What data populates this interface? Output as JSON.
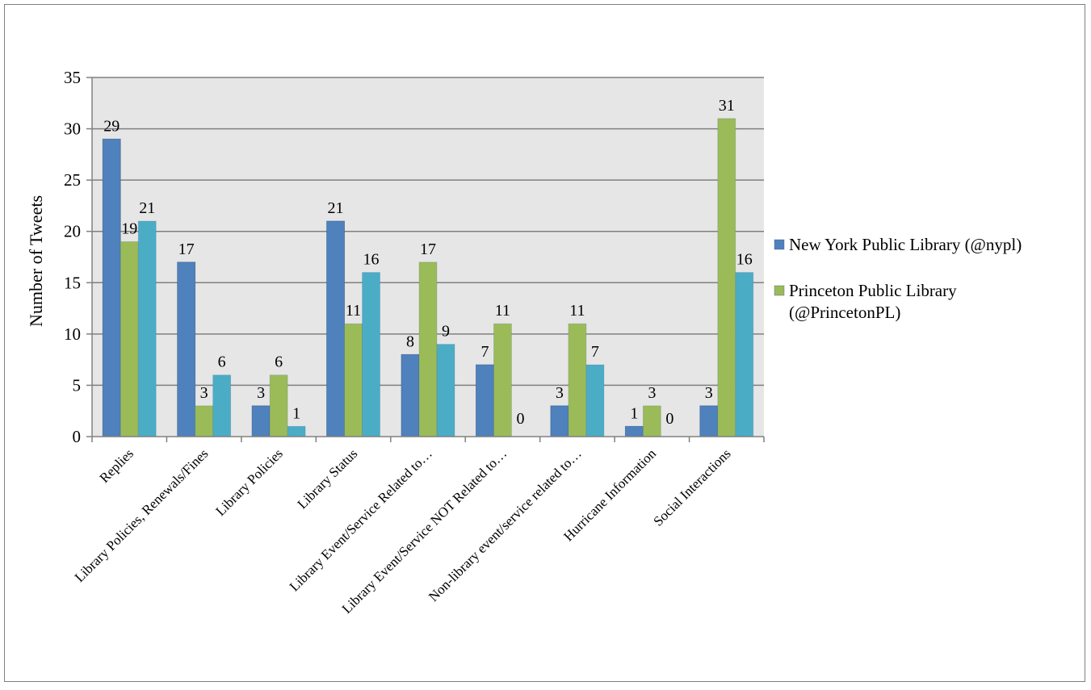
{
  "chart_data": {
    "type": "bar",
    "ylabel": "Number of Tweets",
    "xlabel": "",
    "title": "",
    "ylim": [
      0,
      35
    ],
    "yticks": [
      "0",
      "5",
      "10",
      "15",
      "20",
      "25",
      "30",
      "35"
    ],
    "categories": [
      "Replies",
      "Library Policies, Renewals/Fines",
      "Library Policies",
      "Library Status",
      "Library Event/Service Related to…",
      "Library Event/Service NOT Related to…",
      "Non-library event/service related to…",
      "Hurricane Information",
      "Social Interactions"
    ],
    "series": [
      {
        "name": "New York Public Library (@nypl)",
        "color": "#4f81bd",
        "values": [
          29,
          17,
          3,
          21,
          8,
          7,
          3,
          1,
          3
        ]
      },
      {
        "name": "Princeton Public Library (@PrincetonPL)",
        "color": "#9bbb59",
        "values": [
          19,
          3,
          6,
          11,
          17,
          11,
          11,
          3,
          31
        ]
      },
      {
        "name": "",
        "color": "#4bacc6",
        "values": [
          21,
          6,
          1,
          16,
          9,
          0,
          7,
          0,
          16
        ]
      }
    ],
    "legend": {
      "position": "right",
      "lines": [
        [
          "New York Public Library (@nypl)"
        ],
        [
          "Princeton Public Library",
          "(@PrincetonPL)"
        ]
      ]
    },
    "grid": true,
    "plot_background": "#e6e6e6"
  }
}
